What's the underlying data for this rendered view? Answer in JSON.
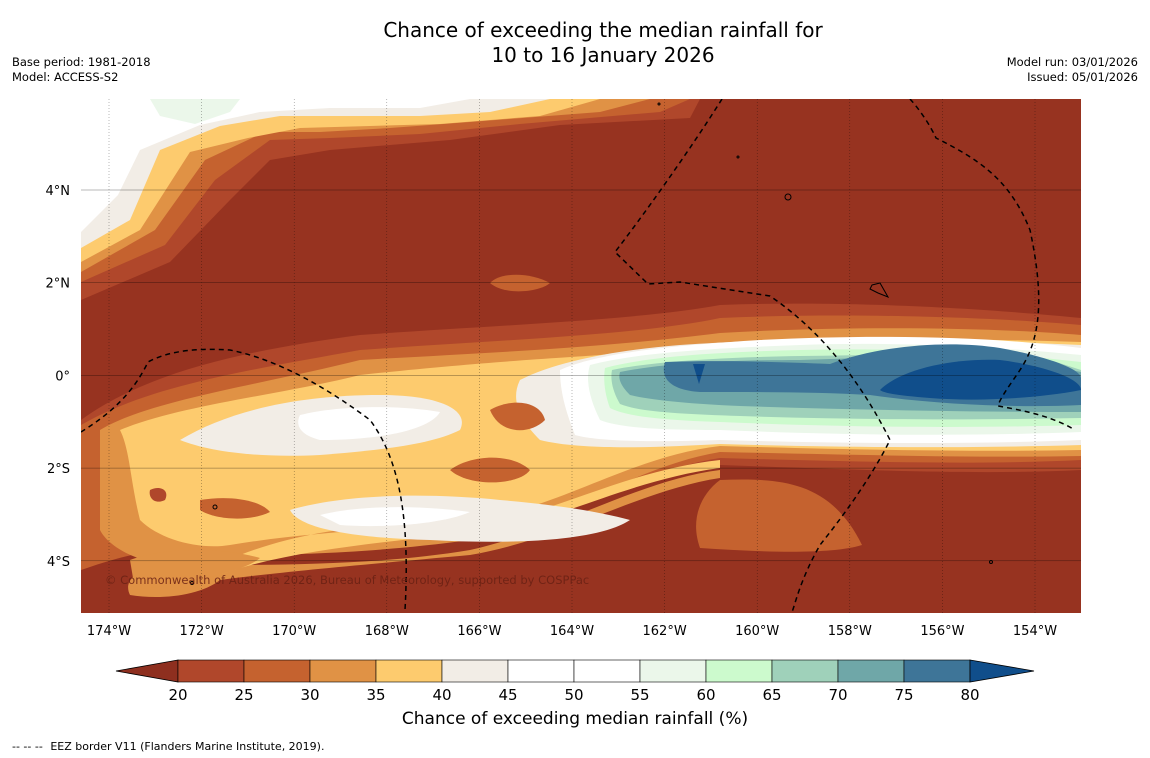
{
  "title": {
    "line1": "Chance of exceeding the median rainfall for",
    "line2": "10 to 16 January 2026"
  },
  "meta_left": {
    "base_period": "Base period: 1981-2018",
    "model": "Model: ACCESS-S2"
  },
  "meta_right": {
    "model_run": "Model run: 03/01/2026",
    "issued": "Issued: 05/01/2026"
  },
  "map": {
    "longitude_labels": [
      "174°W",
      "172°W",
      "170°W",
      "168°W",
      "166°W",
      "164°W",
      "162°W",
      "160°W",
      "158°W",
      "156°W",
      "154°W"
    ],
    "latitude_labels": [
      "4°N",
      "2°N",
      "0°",
      "2°S",
      "4°S"
    ],
    "copyright": "© Commonwealth of Australia 2026, Bureau of Meteorology, supported by COSPPac",
    "base_color": "#973320"
  },
  "colorbar": {
    "ticks": [
      "20",
      "25",
      "30",
      "35",
      "40",
      "45",
      "50",
      "55",
      "60",
      "65",
      "70",
      "75",
      "80"
    ],
    "under_color": "#8e2f1f",
    "over_color": "#104e8b",
    "colors": [
      "#b0472b",
      "#c5622f",
      "#e09245",
      "#fdcb6e",
      "#f2ede6",
      "#ffffff",
      "#ffffff",
      "#ebf7ea",
      "#ccfacd",
      "#9fd1ba",
      "#6fa7a8",
      "#3e7598"
    ],
    "title": "Chance of exceeding median rainfall (%)"
  },
  "footer": {
    "legend_marker": "--  --  --",
    "legend_text": "EEZ border V11 (Flanders Marine Institute, 2019)."
  }
}
